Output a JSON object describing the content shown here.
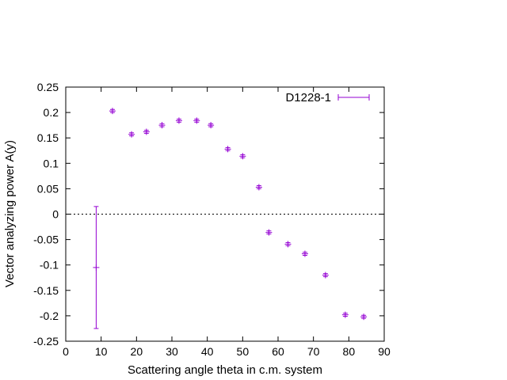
{
  "chart_data": {
    "type": "scatter",
    "title": "",
    "xlabel": "Scattering angle theta in c.m. system",
    "ylabel": "Vector analyzing power A(y)",
    "xlim": [
      0,
      90
    ],
    "ylim": [
      -0.25,
      0.25
    ],
    "xticks": [
      0,
      10,
      20,
      30,
      40,
      50,
      60,
      70,
      80,
      90
    ],
    "yticks": [
      -0.25,
      -0.2,
      -0.15,
      -0.1,
      -0.05,
      0,
      0.05,
      0.1,
      0.15,
      0.2,
      0.25
    ],
    "xtick_labels": [
      "0",
      "10",
      "20",
      "30",
      "40",
      "50",
      "60",
      "70",
      "80",
      "90"
    ],
    "ytick_labels": [
      "-0.25",
      "-0.2",
      "-0.15",
      "-0.1",
      "-0.05",
      "0",
      "0.05",
      "0.1",
      "0.15",
      "0.2",
      "0.25"
    ],
    "zero_line": true,
    "grid": false,
    "legend_position": "top-right",
    "series": [
      {
        "name": "D1228-1",
        "color": "#9400d3",
        "marker": "plus",
        "points": [
          {
            "x": 8.6,
            "y": -0.105,
            "yerr": 0.12
          },
          {
            "x": 13.2,
            "y": 0.203,
            "yerr": 0.003
          },
          {
            "x": 18.6,
            "y": 0.157,
            "yerr": 0.003
          },
          {
            "x": 22.8,
            "y": 0.162,
            "yerr": 0.003
          },
          {
            "x": 27.2,
            "y": 0.175,
            "yerr": 0.003
          },
          {
            "x": 32.0,
            "y": 0.184,
            "yerr": 0.003
          },
          {
            "x": 37.0,
            "y": 0.184,
            "yerr": 0.003
          },
          {
            "x": 41.0,
            "y": 0.175,
            "yerr": 0.003
          },
          {
            "x": 45.8,
            "y": 0.128,
            "yerr": 0.003
          },
          {
            "x": 50.0,
            "y": 0.114,
            "yerr": 0.003
          },
          {
            "x": 54.6,
            "y": 0.053,
            "yerr": 0.003
          },
          {
            "x": 57.4,
            "y": -0.036,
            "yerr": 0.003
          },
          {
            "x": 62.8,
            "y": -0.059,
            "yerr": 0.003
          },
          {
            "x": 67.6,
            "y": -0.078,
            "yerr": 0.003
          },
          {
            "x": 73.4,
            "y": -0.12,
            "yerr": 0.003
          },
          {
            "x": 79.0,
            "y": -0.198,
            "yerr": 0.003
          },
          {
            "x": 84.2,
            "y": -0.202,
            "yerr": 0.003
          }
        ]
      }
    ]
  }
}
